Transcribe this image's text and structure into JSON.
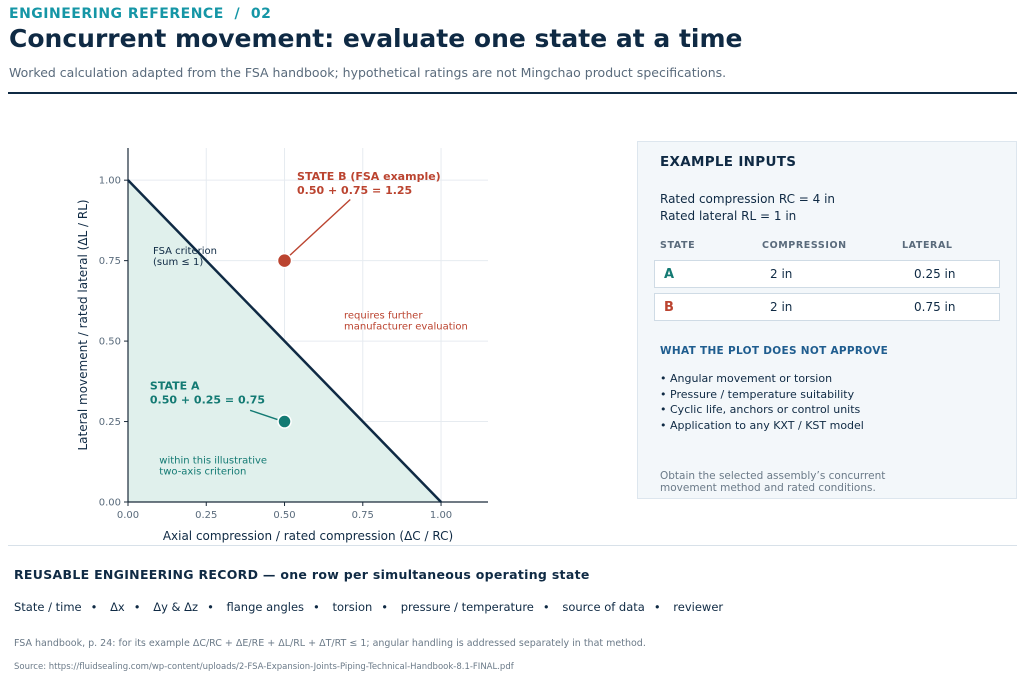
{
  "header": {
    "eyebrow": "ENGINEERING REFERENCE  /  02",
    "title": "Concurrent movement: evaluate one state at a time",
    "subtitle": "Worked calculation adapted from the FSA handbook; hypothetical ratings are not Mingchao product specifications."
  },
  "chart_data": {
    "type": "scatter",
    "xlabel": "Axial compression / rated compression  (ΔC / RC)",
    "ylabel": "Lateral movement / rated lateral  (ΔL / RL)",
    "xlim": [
      0,
      1.15
    ],
    "ylim": [
      0,
      1.1
    ],
    "x_ticks": [
      "0.00",
      "0.25",
      "0.50",
      "0.75",
      "1.00"
    ],
    "y_ticks": [
      "0.00",
      "0.25",
      "0.50",
      "0.75",
      "1.00"
    ],
    "grid": true,
    "criterion_line": {
      "x": [
        0,
        1
      ],
      "y": [
        1,
        0
      ]
    },
    "criterion_label": "FSA criterion\n(sum ≤ 1)",
    "inside_label": "within this illustrative\ntwo-axis criterion",
    "outside_label": "requires further\nmanufacturer evaluation",
    "points": [
      {
        "name": "STATE A",
        "x": 0.5,
        "y": 0.25,
        "calc": "0.50 + 0.25 = 0.75",
        "color": "#137a73"
      },
      {
        "name": "STATE B (FSA example)",
        "x": 0.5,
        "y": 0.75,
        "calc": "0.50 + 0.75 = 1.25",
        "color": "#bb4430"
      }
    ],
    "colors": {
      "line": "#0f2a44",
      "fill": "#e0f0ec",
      "state_a": "#137a73",
      "state_b": "#bb4430"
    }
  },
  "panel": {
    "title": "EXAMPLE INPUTS",
    "rated_compression": "Rated compression RC = 4 in",
    "rated_lateral": "Rated lateral RL = 1 in",
    "headers": [
      "STATE",
      "COMPRESSION",
      "LATERAL"
    ],
    "rows": [
      {
        "state": "A",
        "compression": "2 in",
        "lateral": "0.25 in"
      },
      {
        "state": "B",
        "compression": "2 in",
        "lateral": "0.75 in"
      }
    ],
    "not_approve_title": "WHAT THE PLOT DOES NOT APPROVE",
    "not_approve": [
      "Angular movement or torsion",
      "Pressure / temperature suitability",
      "Cyclic life, anchors or control units",
      "Application to any KXT / KST model"
    ],
    "note": "Obtain the selected assembly’s concurrent movement method and rated conditions."
  },
  "record": {
    "title": "REUSABLE ENGINEERING RECORD  —  one row per simultaneous operating state",
    "fields": [
      "State / time",
      "Δx",
      "Δy & Δz",
      "flange angles",
      "torsion",
      "pressure / temperature",
      "source of data",
      "reviewer"
    ]
  },
  "footer": {
    "note": "FSA handbook, p. 24: for its example ΔC/RC + ΔE/RE + ΔL/RL + ΔT/RT ≤ 1; angular handling is addressed separately in that method.",
    "source": "Source: https://fluidsealing.com/wp-content/uploads/2-FSA-Expansion-Joints-Piping-Technical-Handbook-8.1-FINAL.pdf"
  }
}
